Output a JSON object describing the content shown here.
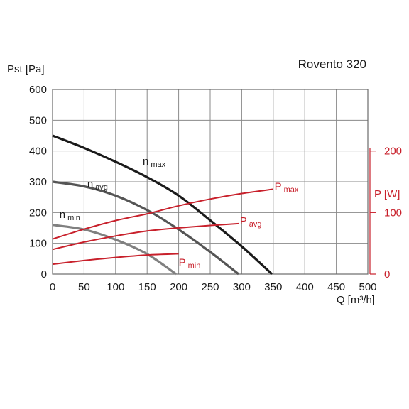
{
  "chart_data": {
    "type": "line",
    "title": "Rovento 320",
    "xlabel": "Q [m³/h]",
    "ylabel": "Pst [Pa]",
    "y2label": "P [W]",
    "xlim": [
      0,
      500
    ],
    "ylim": [
      0,
      600
    ],
    "y2lim": [
      0,
      300
    ],
    "xticks": [
      "0",
      "50",
      "100",
      "150",
      "200",
      "250",
      "300",
      "350",
      "400",
      "450",
      "500"
    ],
    "yticks": [
      "0",
      "100",
      "200",
      "300",
      "400",
      "500",
      "600"
    ],
    "y2ticks": [
      "0",
      "100",
      "200"
    ],
    "y2tick_values": [
      0,
      100,
      200
    ],
    "grid": true,
    "colors": {
      "pressure_max": "#1a1a1a",
      "pressure_avg": "#555555",
      "pressure_min": "#808080",
      "power": "#c8202b"
    },
    "pressure_series": [
      {
        "name": "n",
        "sub": "max",
        "x": [
          0,
          50,
          100,
          150,
          200,
          250,
          300,
          348
        ],
        "y": [
          450,
          410,
          365,
          315,
          255,
          175,
          90,
          0
        ]
      },
      {
        "name": "n",
        "sub": "avg",
        "x": [
          0,
          50,
          100,
          150,
          200,
          250,
          295
        ],
        "y": [
          300,
          285,
          255,
          208,
          145,
          72,
          0
        ]
      },
      {
        "name": "n",
        "sub": "min",
        "x": [
          0,
          50,
          100,
          150,
          196
        ],
        "y": [
          160,
          145,
          112,
          65,
          0
        ]
      }
    ],
    "power_series": [
      {
        "name": "P",
        "sub": "max",
        "x": [
          0,
          50,
          100,
          150,
          200,
          250,
          300,
          350
        ],
        "y": [
          57,
          73,
          87,
          98,
          111,
          122,
          131,
          138
        ]
      },
      {
        "name": "P",
        "sub": "avg",
        "x": [
          0,
          50,
          100,
          150,
          200,
          250,
          295
        ],
        "y": [
          40,
          52,
          62,
          70,
          75,
          79,
          82
        ]
      },
      {
        "name": "P",
        "sub": "min",
        "x": [
          0,
          50,
          100,
          150,
          200
        ],
        "y": [
          16,
          22,
          27,
          31,
          33
        ]
      }
    ]
  }
}
